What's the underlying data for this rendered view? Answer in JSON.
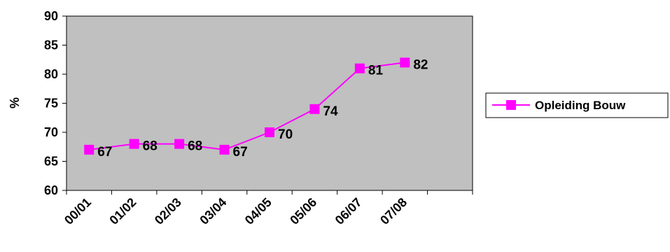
{
  "chart_data": {
    "type": "line",
    "title": "",
    "xlabel": "",
    "ylabel": "%",
    "categories": [
      "00/01",
      "01/02",
      "02/03",
      "03/04",
      "04/05",
      "05/06",
      "06/07",
      "07/08"
    ],
    "series": [
      {
        "name": "Opleiding Bouw",
        "values": [
          67,
          68,
          68,
          67,
          70,
          74,
          81,
          82
        ],
        "color": "#ff00ff"
      }
    ],
    "ylim": [
      60,
      90
    ],
    "yticks": [
      60,
      65,
      70,
      75,
      80,
      85,
      90
    ],
    "plot_background": "#c0c0c0",
    "grid": false,
    "legend": "right",
    "data_labels": true
  }
}
